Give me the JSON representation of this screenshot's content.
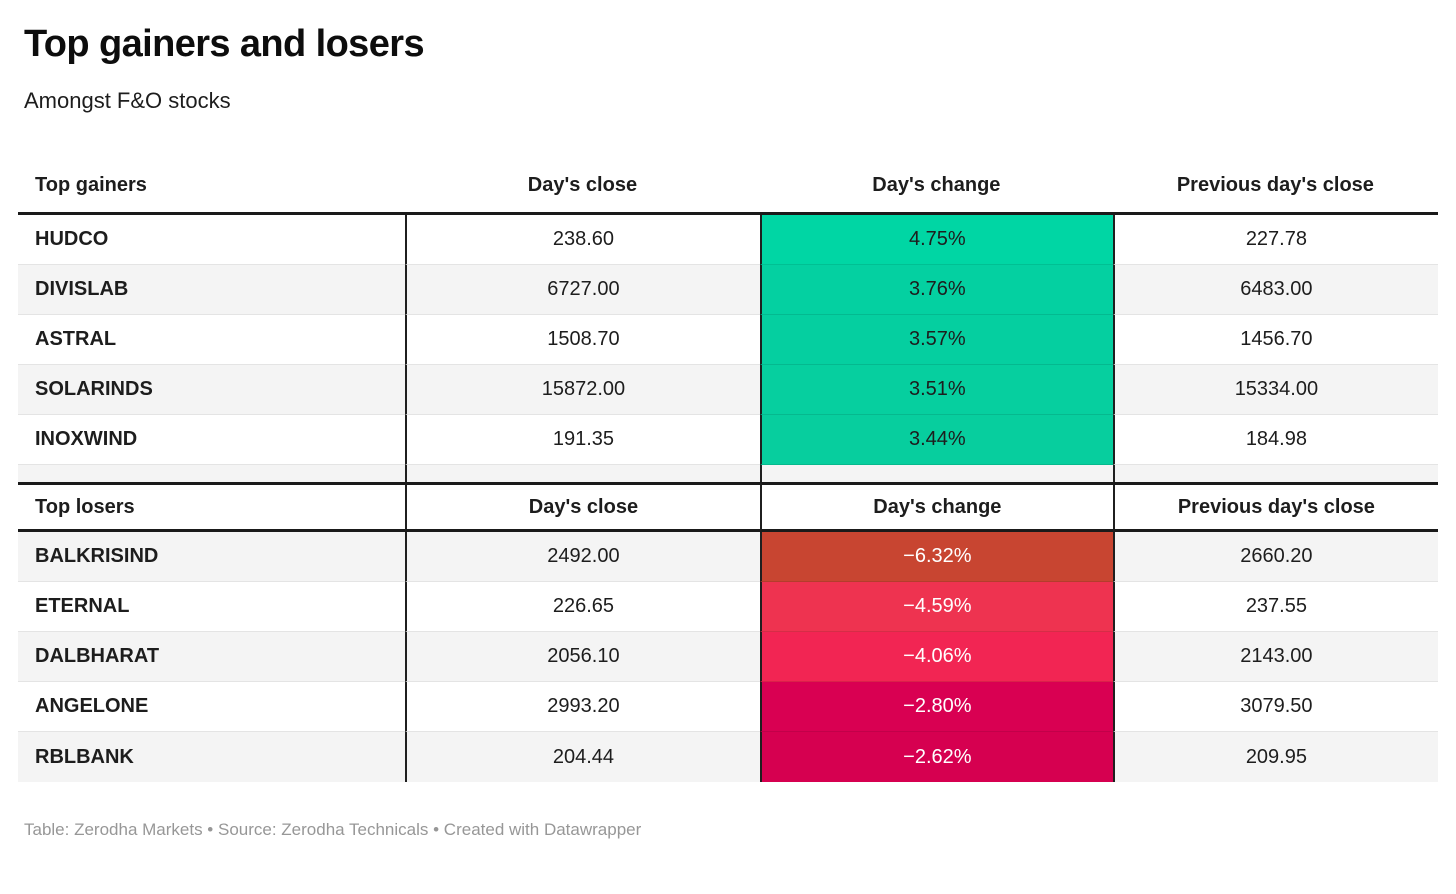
{
  "header": {
    "title": "Top gainers and losers",
    "subtitle": "Amongst F&O stocks"
  },
  "gainers": {
    "label": "Top gainers",
    "col_close": "Day's close",
    "col_change": "Day's change",
    "col_prev": "Previous day's close",
    "rows": [
      {
        "name": "HUDCO",
        "close": "238.60",
        "change": "4.75%",
        "prev": "227.78",
        "bg": "#00d6a4",
        "fg": "#1d1d1d"
      },
      {
        "name": "DIVISLAB",
        "close": "6727.00",
        "change": "3.76%",
        "prev": "6483.00",
        "bg": "#04d0a1",
        "fg": "#1d1d1d"
      },
      {
        "name": "ASTRAL",
        "close": "1508.70",
        "change": "3.57%",
        "prev": "1456.70",
        "bg": "#05cfa0",
        "fg": "#1d1d1d"
      },
      {
        "name": "SOLARINDS",
        "close": "15872.00",
        "change": "3.51%",
        "prev": "15334.00",
        "bg": "#06cf9f",
        "fg": "#1d1d1d"
      },
      {
        "name": "INOXWIND",
        "close": "191.35",
        "change": "3.44%",
        "prev": "184.98",
        "bg": "#07ce9e",
        "fg": "#1d1d1d"
      }
    ]
  },
  "losers": {
    "label": "Top losers",
    "col_close": "Day's close",
    "col_change": "Day's change",
    "col_prev": "Previous day's close",
    "rows": [
      {
        "name": "BALKRISIND",
        "close": "2492.00",
        "change": "−6.32%",
        "prev": "2660.20",
        "bg": "#c84531",
        "fg": "#ffffff"
      },
      {
        "name": "ETERNAL",
        "close": "226.65",
        "change": "−4.59%",
        "prev": "237.55",
        "bg": "#ee3350",
        "fg": "#ffffff"
      },
      {
        "name": "DALBHARAT",
        "close": "2056.10",
        "change": "−4.06%",
        "prev": "2143.00",
        "bg": "#f22553",
        "fg": "#ffffff"
      },
      {
        "name": "ANGELONE",
        "close": "2993.20",
        "change": "−2.80%",
        "prev": "3079.50",
        "bg": "#d90052",
        "fg": "#ffffff"
      },
      {
        "name": "RBLBANK",
        "close": "204.44",
        "change": "−2.62%",
        "prev": "209.95",
        "bg": "#d60050",
        "fg": "#ffffff"
      }
    ]
  },
  "footer": {
    "text": "Table: Zerodha Markets • Source: Zerodha Technicals • Created with Datawrapper"
  },
  "colors": {
    "gain_green": "#04d0a1",
    "loss_red_dark": "#c84531",
    "loss_red_bright": "#d60050",
    "stripe": "#f4f4f4",
    "rule_dark": "#1a1a1a",
    "divider": "#e4e4e4",
    "footer_text": "#979797"
  },
  "chart_data": [
    {
      "type": "table",
      "title": "Top gainers",
      "columns": [
        "Top gainers",
        "Day's close",
        "Day's change",
        "Previous day's close"
      ],
      "rows": [
        [
          "HUDCO",
          238.6,
          "4.75%",
          227.78
        ],
        [
          "DIVISLAB",
          6727.0,
          "3.76%",
          6483.0
        ],
        [
          "ASTRAL",
          1508.7,
          "3.57%",
          1456.7
        ],
        [
          "SOLARINDS",
          15872.0,
          "3.51%",
          15334.0
        ],
        [
          "INOXWIND",
          191.35,
          "3.44%",
          184.98
        ]
      ]
    },
    {
      "type": "table",
      "title": "Top losers",
      "columns": [
        "Top losers",
        "Day's close",
        "Day's change",
        "Previous day's close"
      ],
      "rows": [
        [
          "BALKRISIND",
          2492.0,
          "−6.32%",
          2660.2
        ],
        [
          "ETERNAL",
          226.65,
          "−4.59%",
          237.55
        ],
        [
          "DALBHARAT",
          2056.1,
          "−4.06%",
          2143.0
        ],
        [
          "ANGELONE",
          2993.2,
          "−2.80%",
          3079.5
        ],
        [
          "RBLBANK",
          204.44,
          "−2.62%",
          209.95
        ]
      ]
    }
  ]
}
